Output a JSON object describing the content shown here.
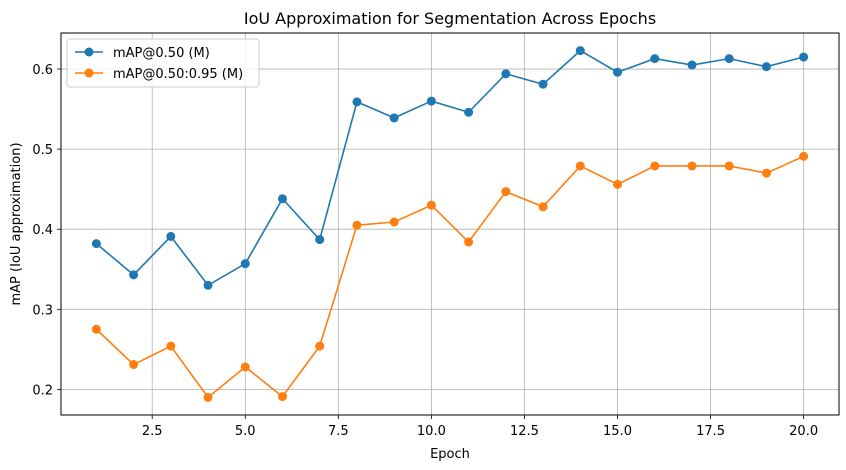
{
  "chart_data": {
    "type": "line",
    "title": "IoU Approximation for Segmentation Across Epochs",
    "xlabel": "Epoch",
    "ylabel": "mAP (IoU approximation)",
    "x": [
      1,
      2,
      3,
      4,
      5,
      6,
      7,
      8,
      9,
      10,
      11,
      12,
      13,
      14,
      15,
      16,
      17,
      18,
      19,
      20
    ],
    "xlim": [
      0.05,
      20.95
    ],
    "ylim": [
      0.168,
      0.645
    ],
    "xticks": [
      2.5,
      5.0,
      7.5,
      10.0,
      12.5,
      15.0,
      17.5,
      20.0
    ],
    "xtick_labels": [
      "2.5",
      "5.0",
      "7.5",
      "10.0",
      "12.5",
      "15.0",
      "17.5",
      "20.0"
    ],
    "yticks": [
      0.2,
      0.3,
      0.4,
      0.5,
      0.6
    ],
    "ytick_labels": [
      "0.2",
      "0.3",
      "0.4",
      "0.5",
      "0.6"
    ],
    "grid": true,
    "legend_position": "upper-left",
    "series": [
      {
        "name": "mAP@0.50 (M)",
        "color": "#1f77b4",
        "marker": "circle",
        "values": [
          0.382,
          0.343,
          0.391,
          0.33,
          0.357,
          0.438,
          0.387,
          0.559,
          0.539,
          0.56,
          0.546,
          0.594,
          0.581,
          0.623,
          0.596,
          0.613,
          0.605,
          0.613,
          0.603,
          0.615
        ]
      },
      {
        "name": "mAP@0.50:0.95 (M)",
        "color": "#ff7f0e",
        "marker": "circle",
        "values": [
          0.275,
          0.231,
          0.254,
          0.19,
          0.228,
          0.191,
          0.254,
          0.405,
          0.409,
          0.43,
          0.384,
          0.447,
          0.428,
          0.479,
          0.456,
          0.479,
          0.479,
          0.479,
          0.47,
          0.491
        ]
      }
    ]
  }
}
